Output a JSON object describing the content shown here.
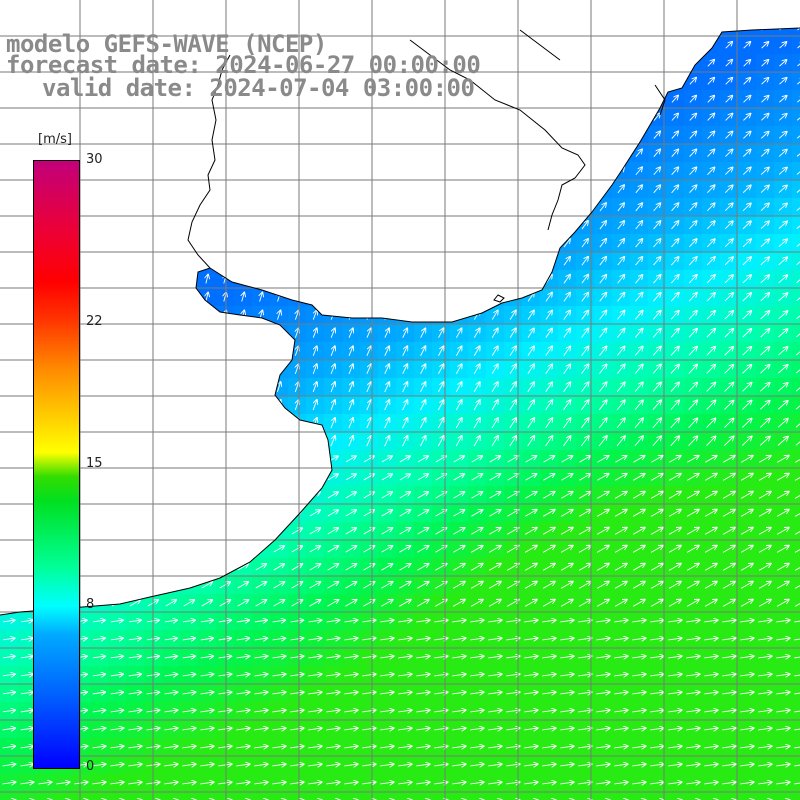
{
  "title": {
    "model": "modelo GEFS-WAVE (NCEP)",
    "forecast": "forecast date: 2024-06-27 00:00:00",
    "valid": "valid date: 2024-07-04 03:00:00"
  },
  "colorbar": {
    "units": "[m/s]",
    "ticks": [
      {
        "value": 30,
        "label": "30"
      },
      {
        "value": 22,
        "label": "22"
      },
      {
        "value": 15,
        "label": "15"
      },
      {
        "value": 8,
        "label": "8"
      },
      {
        "value": 0,
        "label": "0"
      }
    ],
    "min": 0,
    "max": 30
  },
  "map": {
    "field": "wind speed",
    "vectors": "wind direction arrows",
    "grid": true,
    "land_color": "#ffffff",
    "coastline_color": "#000000",
    "colors": {
      "blue": "#0000ff",
      "light_blue": "#00aaff",
      "cyan": "#00ffff",
      "green": "#00ff44",
      "yellow": "#ffff00",
      "red": "#ff0000",
      "magenta": "#c2007a"
    }
  }
}
